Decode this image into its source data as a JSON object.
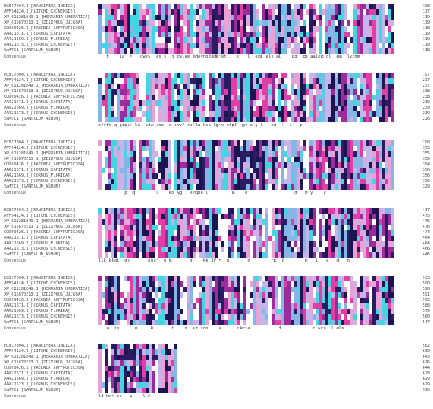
{
  "sequence_names": [
    "BCB17004.1_[MANGIFERA_INDICA]",
    "AFF94124.1_[LITCHI_CHINENSIS]",
    "XP_021281849.1_[HERRANIA_UMBRATICA]",
    "XP_015870313.1_[ZIZIPHUS_JUJUBA]",
    "QOD09426.1_[PAEONIA_SUFFRUTICOSA]",
    "AAR21671.1_[CORNUS_CAPITATA]",
    "AAR21669.1_[CORNUS_FLORIDA]",
    "AAR21673.1_[CORNUS_CHINENSIS]",
    "SaMTC1_[SANTALUM_ALBUM]"
  ],
  "consensus_label": "Consensus",
  "blocks": [
    {
      "ends": [
        "108",
        "117",
        "119",
        "119",
        "118",
        "119",
        "119",
        "119",
        "118"
      ],
      "consensus": "   t    ia  v   qwsy  es s  g dylee ddyyngdidktktl   q   l  eql aly al    pq  cp aalap dl  ea  lvcmm"
    },
    {
      "ends": [
        "197",
        "217",
        "237",
        "238",
        "238",
        "239",
        "239",
        "239",
        "226"
      ],
      "consensus": "sfvfs q gippr la  piw cna  s esvf ralla ksa lgtv ofpf  gv elg l   ed  l  i   p"
    },
    {
      "ends": [
        "298",
        "355",
        "355",
        "356",
        "354",
        "356",
        "356",
        "356",
        "329"
      ],
      "consensus": "          p  q        s    ep vg   ovqee l         a    e                  d   h y    v"
    },
    {
      "ends": [
        "417",
        "475",
        "475",
        "476",
        "474",
        "464",
        "464",
        "466",
        "446"
      ],
      "consensus": "lik khql  gp       essf  w k       q    kk lf v  m       n        rp  d        n   i   a   d   n"
    },
    {
      "ends": [
        "533",
        "590",
        "590",
        "591",
        "595",
        "588",
        "579",
        "580",
        "547"
      ],
      "consensus": " l a  ip    l e     k       t    d  er sdn    o      nkrsa           d            c wce  l elm"
    },
    {
      "ends": [
        "582",
        "639",
        "643",
        "616",
        "644",
        "628",
        "629",
        "629",
        "590"
      ],
      "consensus": "ld hvv ss   g    l k"
    }
  ]
}
